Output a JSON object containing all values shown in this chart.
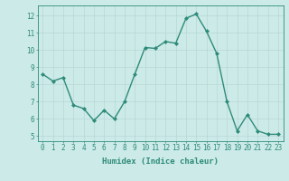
{
  "x": [
    0,
    1,
    2,
    3,
    4,
    5,
    6,
    7,
    8,
    9,
    10,
    11,
    12,
    13,
    14,
    15,
    16,
    17,
    18,
    19,
    20,
    21,
    22,
    23
  ],
  "y": [
    8.6,
    8.2,
    8.4,
    6.8,
    6.6,
    5.9,
    6.5,
    6.0,
    7.0,
    8.6,
    10.15,
    10.1,
    10.5,
    10.4,
    11.85,
    12.1,
    11.1,
    9.8,
    7.0,
    5.3,
    6.25,
    5.3,
    5.1,
    5.1
  ],
  "line_color": "#2e8b7a",
  "marker": "D",
  "marker_size": 2.0,
  "bg_color": "#cceae7",
  "grid_color": "#b8d8d5",
  "xlabel": "Humidex (Indice chaleur)",
  "xlim": [
    -0.5,
    23.5
  ],
  "ylim": [
    4.7,
    12.6
  ],
  "yticks": [
    5,
    6,
    7,
    8,
    9,
    10,
    11,
    12
  ],
  "xticks": [
    0,
    1,
    2,
    3,
    4,
    5,
    6,
    7,
    8,
    9,
    10,
    11,
    12,
    13,
    14,
    15,
    16,
    17,
    18,
    19,
    20,
    21,
    22,
    23
  ],
  "tick_label_fontsize": 5.5,
  "xlabel_fontsize": 6.5,
  "line_width": 1.0
}
